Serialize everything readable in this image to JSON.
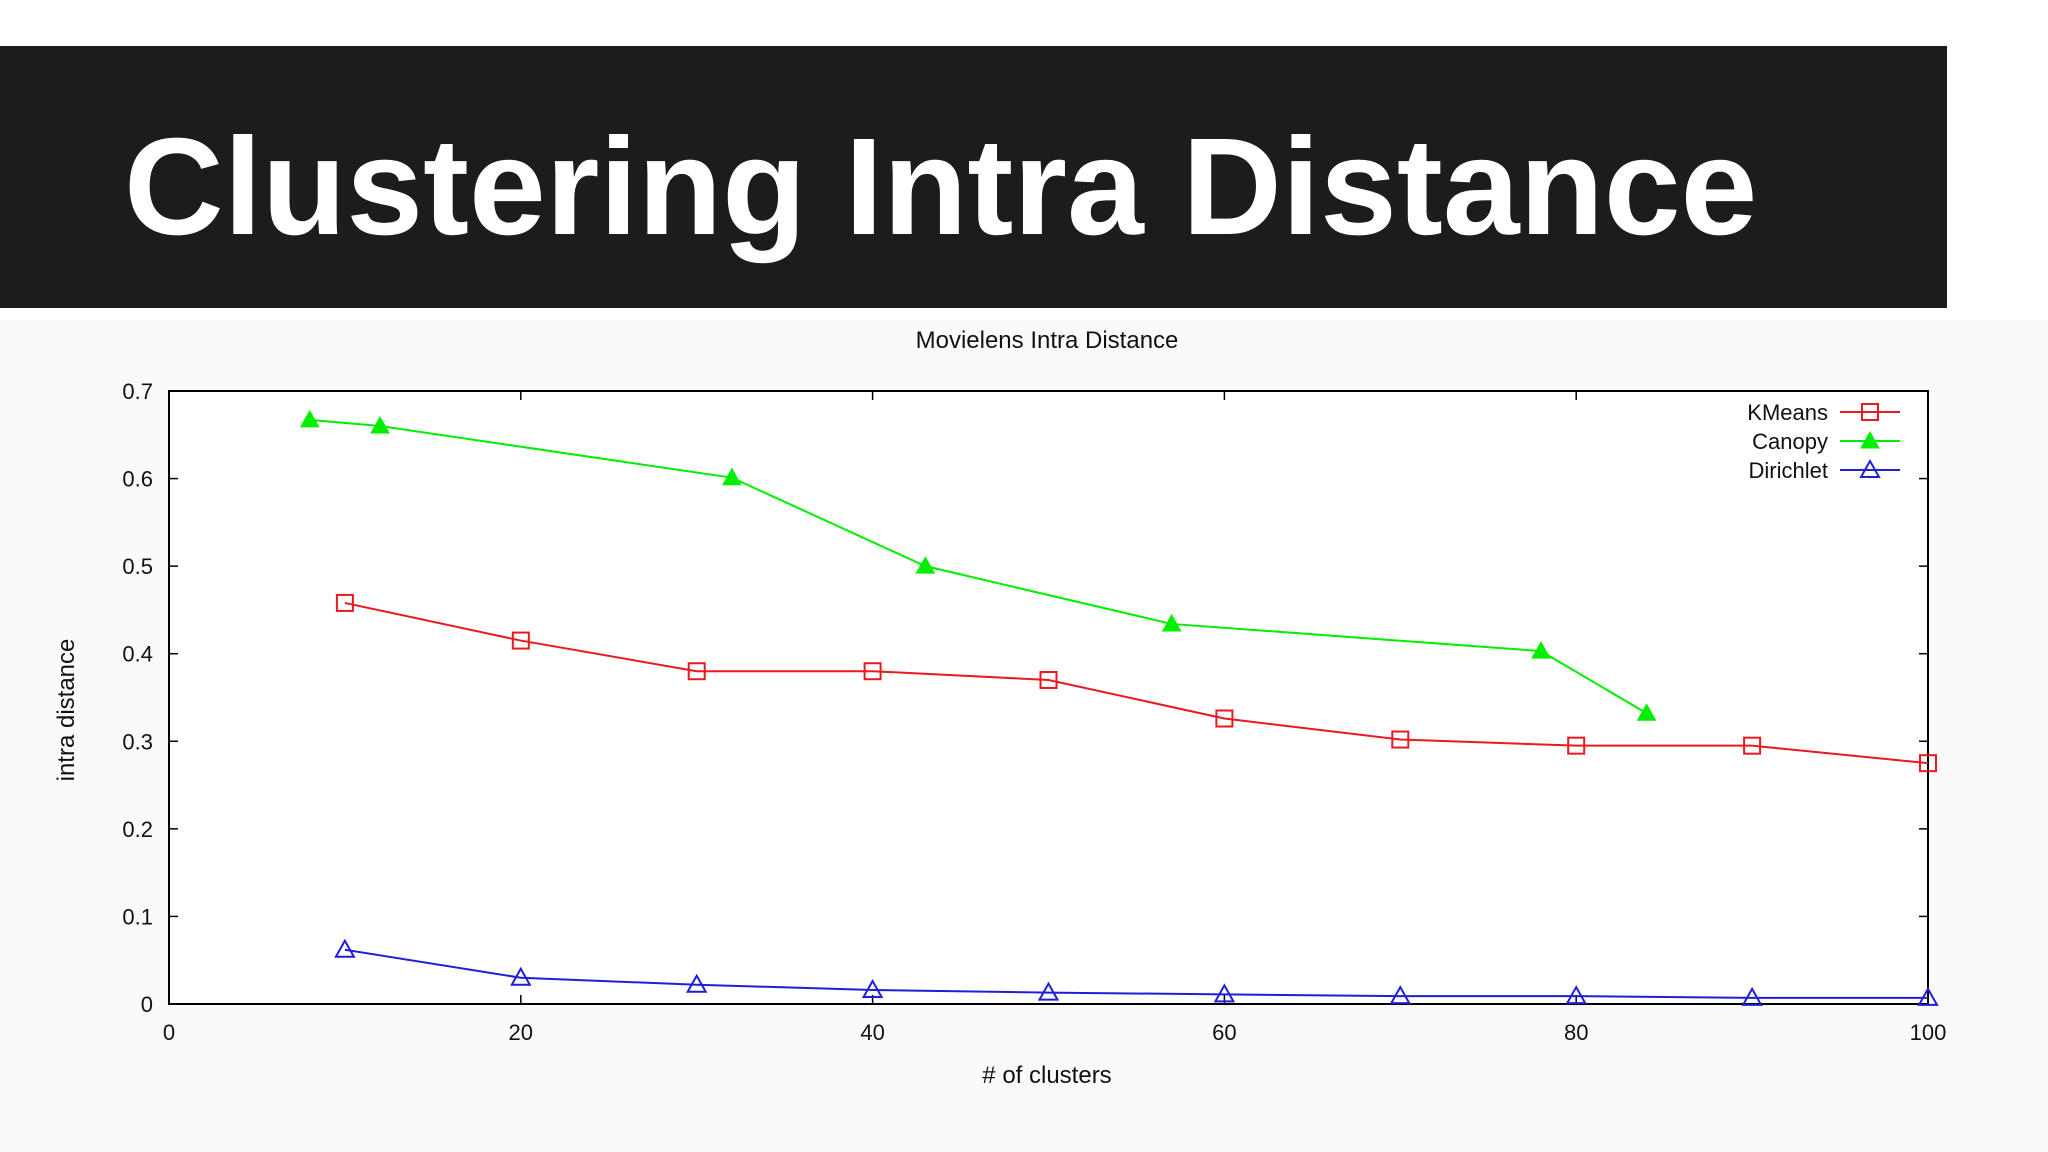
{
  "slide": {
    "title": "Clustering Intra Distance"
  },
  "colors": {
    "title_bar": "#1c1c1c",
    "title_text": "#ffffff"
  },
  "chart_data": {
    "type": "line",
    "title": "Movielens Intra Distance",
    "xlabel": "# of clusters",
    "ylabel": "intra distance",
    "xlim": [
      0,
      100
    ],
    "ylim": [
      0,
      0.7
    ],
    "xticks": [
      "0",
      "20",
      "40",
      "60",
      "80",
      "100"
    ],
    "yticks": [
      "0",
      "0.1",
      "0.2",
      "0.3",
      "0.4",
      "0.5",
      "0.6",
      "0.7"
    ],
    "legend_position": "top-right",
    "series": [
      {
        "name": "KMeans",
        "color": "#e8191f",
        "marker": "open-square",
        "x": [
          10,
          20,
          30,
          40,
          50,
          60,
          70,
          80,
          90,
          100
        ],
        "y": [
          0.458,
          0.415,
          0.38,
          0.38,
          0.37,
          0.326,
          0.302,
          0.295,
          0.295,
          0.275
        ]
      },
      {
        "name": "Canopy",
        "color": "#00ee00",
        "marker": "filled-triangle",
        "x": [
          8,
          12,
          32,
          43,
          57,
          78,
          84
        ],
        "y": [
          0.667,
          0.66,
          0.601,
          0.5,
          0.434,
          0.403,
          0.332
        ]
      },
      {
        "name": "Dirichlet",
        "color": "#1f1fd8",
        "marker": "open-triangle",
        "x": [
          10,
          20,
          30,
          40,
          50,
          60,
          70,
          80,
          90,
          100
        ],
        "y": [
          0.062,
          0.03,
          0.022,
          0.016,
          0.013,
          0.011,
          0.009,
          0.009,
          0.007,
          0.007
        ]
      }
    ]
  }
}
